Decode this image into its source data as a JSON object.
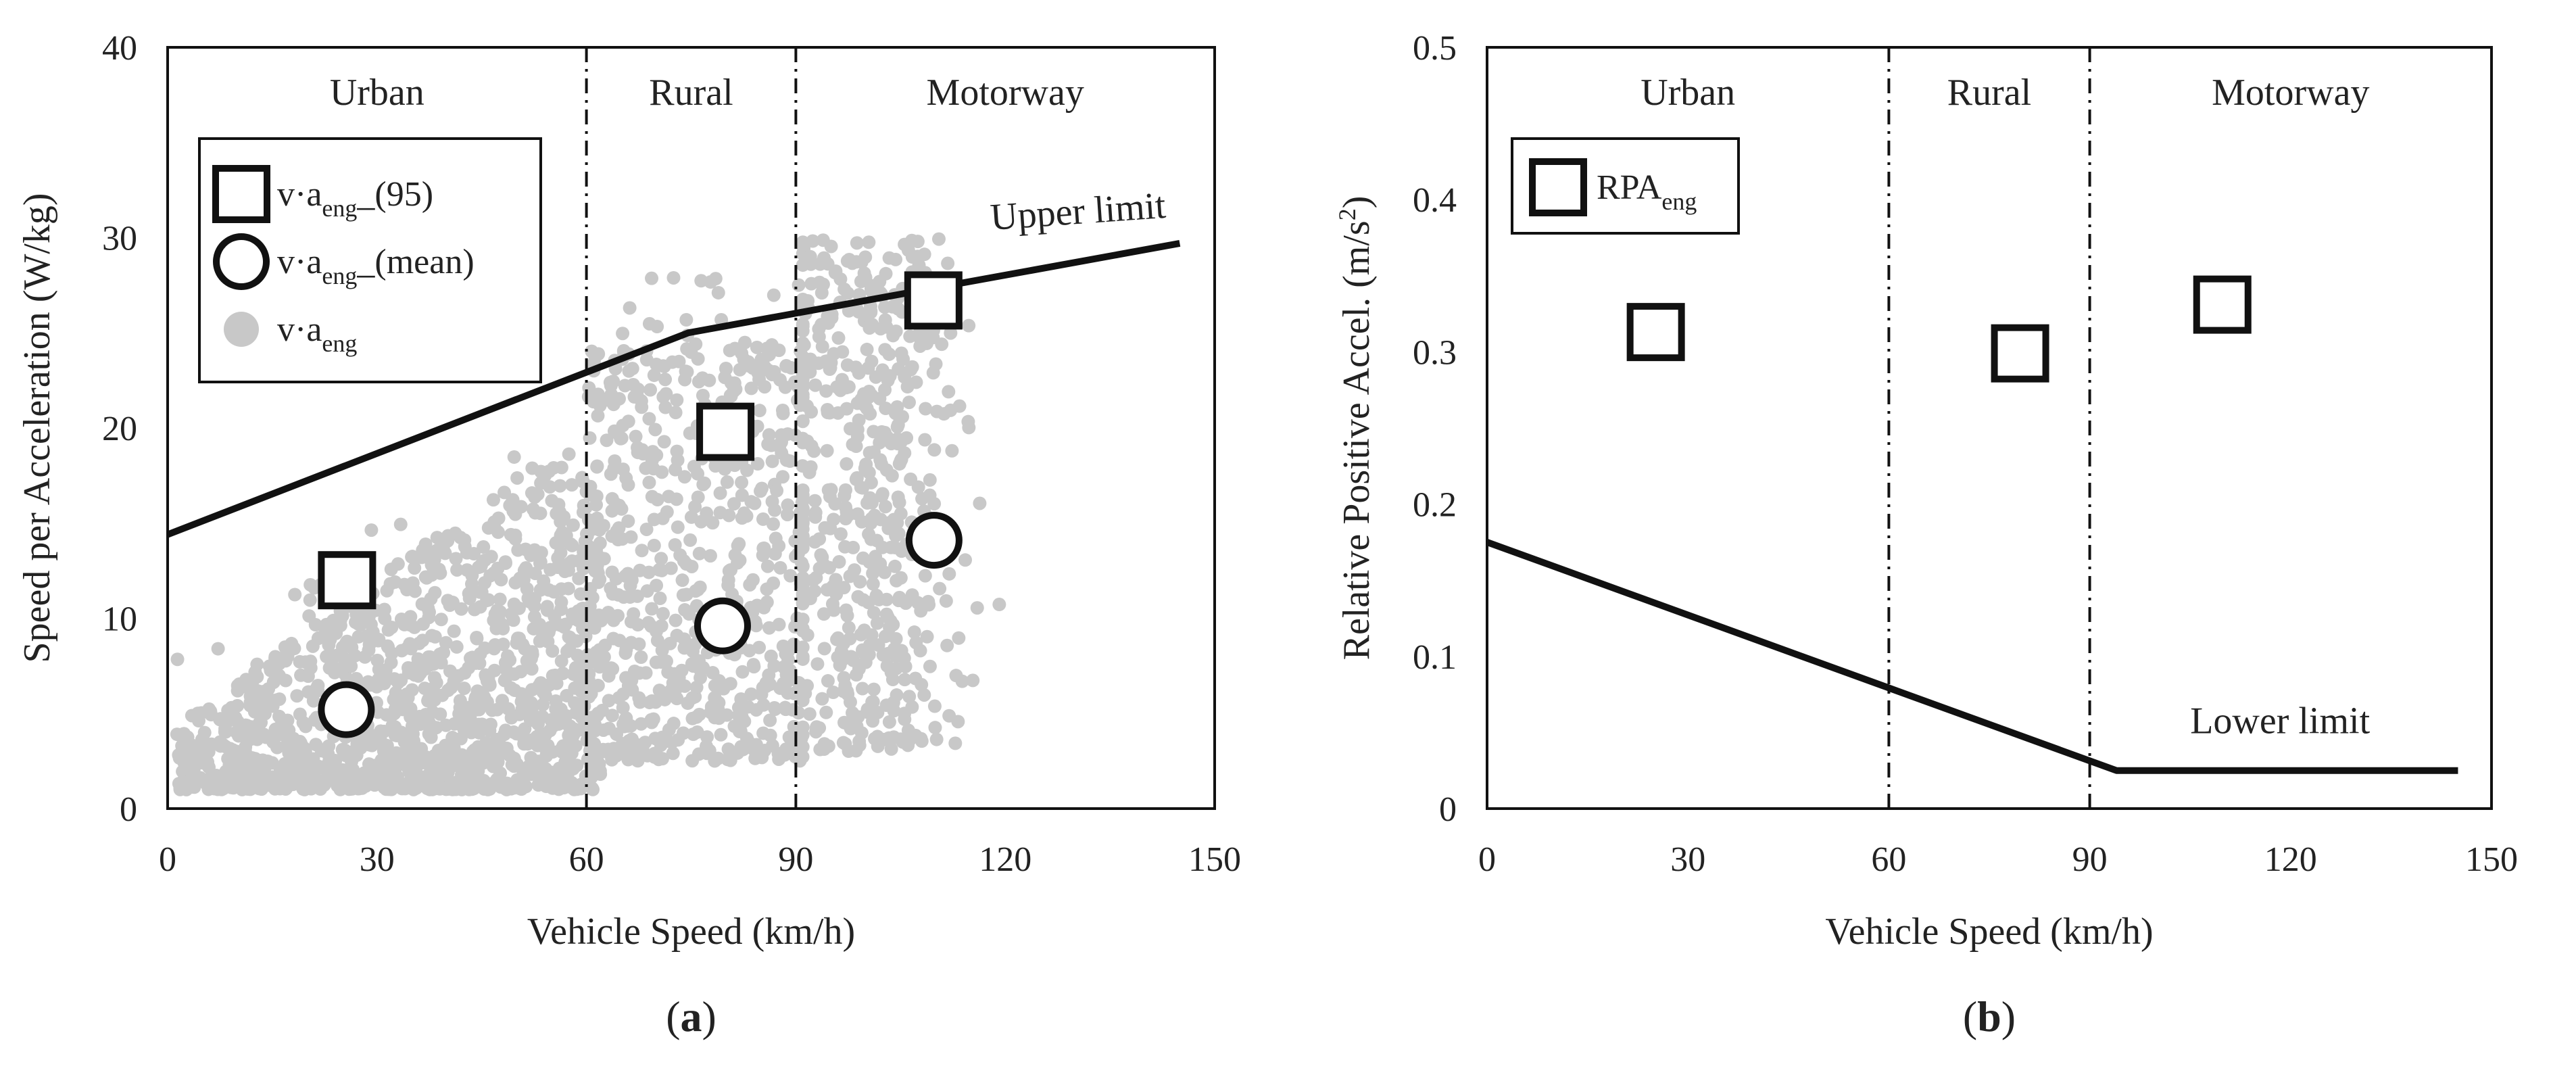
{
  "charts": [
    {
      "id": "a",
      "panel_label_paren_open": "(",
      "panel_label": "a",
      "panel_label_paren_close": ")",
      "type": "scatter",
      "xlabel": "Vehicle Speed (km/h)",
      "ylabel": "Speed per Acceleration (W/kg)",
      "xlim": [
        0,
        150
      ],
      "ylim": [
        0,
        40
      ],
      "xticks": [
        "0",
        "30",
        "60",
        "90",
        "120",
        "150"
      ],
      "yticks": [
        "0",
        "10",
        "20",
        "30",
        "40"
      ],
      "regions": [
        {
          "label": "Urban",
          "center": 30
        },
        {
          "label": "Rural",
          "center": 75
        },
        {
          "label": "Motorway",
          "center": 120
        }
      ],
      "region_boundaries": [
        60,
        90
      ],
      "upper_limit": {
        "label": "Upper limit",
        "points": [
          [
            0,
            14.4
          ],
          [
            74.6,
            25.0
          ],
          [
            145,
            29.7
          ]
        ]
      },
      "legend": [
        {
          "marker": "square",
          "text": "v·a",
          "sub": "eng",
          "suffix": "_(95)"
        },
        {
          "marker": "circle",
          "text": "v·a",
          "sub": "eng",
          "suffix": "_(mean)"
        },
        {
          "marker": "dot",
          "text": "v·a",
          "sub": "eng",
          "suffix": ""
        }
      ],
      "series_95": [
        [
          25.7,
          12.0
        ],
        [
          79.9,
          19.8
        ],
        [
          109.7,
          26.7
        ]
      ],
      "series_mean": [
        [
          25.6,
          5.2
        ],
        [
          79.5,
          9.6
        ],
        [
          109.8,
          14.1
        ]
      ],
      "scatter_color": "#c8c8c8"
    },
    {
      "id": "b",
      "panel_label_paren_open": "(",
      "panel_label": "b",
      "panel_label_paren_close": ")",
      "type": "scatter",
      "xlabel": "Vehicle Speed (km/h)",
      "ylabel_main": "Relative Positive Accel. (m/s",
      "ylabel_sup": "2",
      "ylabel_end": ")",
      "xlim": [
        0,
        150
      ],
      "ylim": [
        0,
        0.5
      ],
      "xticks": [
        "0",
        "30",
        "60",
        "90",
        "120",
        "150"
      ],
      "yticks": [
        "0",
        "0.1",
        "0.2",
        "0.3",
        "0.4",
        "0.5"
      ],
      "regions": [
        {
          "label": "Urban",
          "center": 30
        },
        {
          "label": "Rural",
          "center": 75
        },
        {
          "label": "Motorway",
          "center": 120
        }
      ],
      "region_boundaries": [
        60,
        90
      ],
      "lower_limit": {
        "label": "Lower limit",
        "points": [
          [
            0,
            0.175
          ],
          [
            94,
            0.025
          ],
          [
            145,
            0.025
          ]
        ]
      },
      "legend": [
        {
          "marker": "square",
          "text": "RPA",
          "sub": "eng"
        }
      ],
      "series_rpa": [
        [
          25.2,
          0.313
        ],
        [
          79.6,
          0.299
        ],
        [
          109.8,
          0.331
        ]
      ]
    }
  ]
}
